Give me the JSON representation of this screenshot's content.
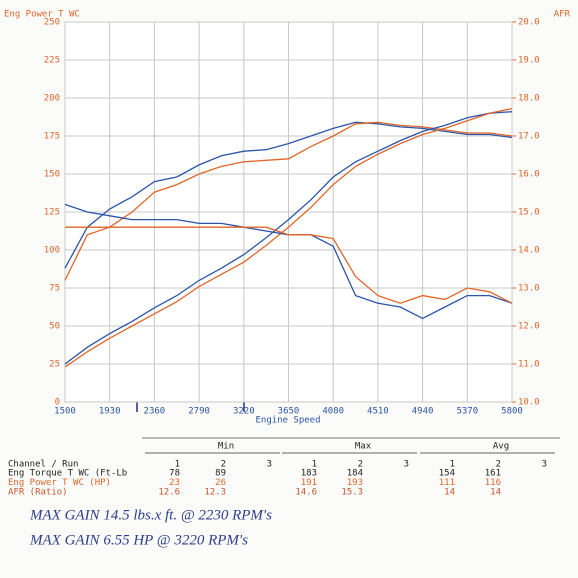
{
  "chart_data": {
    "type": "line",
    "ylabel": "Eng Power T WC",
    "y2label": "AFR",
    "xlabel": "Engine Speed",
    "x": [
      1500,
      1715,
      1930,
      2145,
      2360,
      2575,
      2790,
      3005,
      3220,
      3435,
      3650,
      3865,
      4080,
      4295,
      4510,
      4725,
      4940,
      5155,
      5370,
      5585,
      5800
    ],
    "xlim": [
      1500,
      5800
    ],
    "xticks": [
      1500,
      1930,
      2360,
      2790,
      3220,
      3650,
      4080,
      4510,
      4940,
      5370,
      5800
    ],
    "ylim": [
      0,
      250
    ],
    "yticks": [
      0,
      25,
      50,
      75,
      100,
      125,
      150,
      175,
      200,
      225,
      250
    ],
    "y2lim": [
      10,
      20
    ],
    "y2ticks": [
      {
        "value": 10,
        "label": "10.0"
      },
      {
        "value": 11,
        "label": "11.0"
      },
      {
        "value": 12,
        "label": "12.0"
      },
      {
        "value": 13,
        "label": "13.0"
      },
      {
        "value": 14,
        "label": "14.0"
      },
      {
        "value": 15,
        "label": "15.0"
      },
      {
        "value": 16,
        "label": "16.0"
      },
      {
        "value": 17,
        "label": "17.0"
      },
      {
        "value": 18,
        "label": "18.0"
      },
      {
        "value": 19,
        "label": "19.0"
      },
      {
        "value": 20,
        "label": "20.0"
      }
    ],
    "grid": true,
    "series": [
      {
        "color": "#2a55a8",
        "values": [
          88,
          115,
          127,
          135,
          145,
          148,
          156,
          162,
          165,
          166,
          170,
          175,
          180,
          184,
          183,
          181,
          180,
          178,
          176,
          176,
          174
        ]
      },
      {
        "color": "#e0662a",
        "values": [
          80,
          110,
          115,
          125,
          138,
          143,
          150,
          155,
          158,
          159,
          160,
          168,
          175,
          183,
          184,
          182,
          181,
          179,
          177,
          177,
          175
        ]
      },
      {
        "color": "#2a55a8",
        "values": [
          25,
          36,
          45,
          53,
          62,
          70,
          80,
          88,
          97,
          108,
          120,
          133,
          148,
          158,
          165,
          172,
          178,
          182,
          187,
          190,
          191
        ]
      },
      {
        "color": "#e0662a",
        "values": [
          23,
          33,
          42,
          50,
          58,
          66,
          76,
          84,
          92,
          103,
          115,
          128,
          143,
          155,
          163,
          170,
          176,
          180,
          185,
          190,
          193
        ]
      },
      {
        "color": "#2a55a8",
        "axis": "y2",
        "values": [
          15.2,
          15.0,
          14.9,
          14.8,
          14.8,
          14.8,
          14.7,
          14.7,
          14.6,
          14.5,
          14.4,
          14.4,
          14.1,
          12.8,
          12.6,
          12.5,
          12.2,
          12.5,
          12.8,
          12.8,
          12.6
        ]
      },
      {
        "color": "#e0662a",
        "axis": "y2",
        "values": [
          14.6,
          14.6,
          14.6,
          14.6,
          14.6,
          14.6,
          14.6,
          14.6,
          14.6,
          14.6,
          14.4,
          14.4,
          14.3,
          13.3,
          12.8,
          12.6,
          12.8,
          12.7,
          13.0,
          12.9,
          12.6
        ]
      }
    ]
  },
  "table": {
    "header": "Channel / Run",
    "groups": [
      "Min",
      "Max",
      "Avg"
    ],
    "runs": [
      "1",
      "2",
      "3"
    ],
    "rows": [
      {
        "label": "Eng Torque T WC (Ft-Lb",
        "color": "#222222",
        "min": [
          78,
          89
        ],
        "max": [
          183,
          184
        ],
        "avg": [
          154,
          161
        ]
      },
      {
        "label": "Eng Power T WC (HP)",
        "color": "#e0662a",
        "min": [
          23,
          26
        ],
        "max": [
          191,
          193
        ],
        "avg": [
          111,
          116
        ]
      },
      {
        "label": "AFR (Ratio)",
        "color": "#c8552a",
        "min": [
          12.6,
          12.3
        ],
        "max": [
          14.6,
          15.3
        ],
        "avg": [
          14.0,
          14.0
        ]
      }
    ]
  },
  "notes": [
    "MAX GAIN 14.5 lbs.x ft. @ 2230 RPM's",
    "MAX GAIN 6.55 HP @ 3220 RPM's"
  ]
}
